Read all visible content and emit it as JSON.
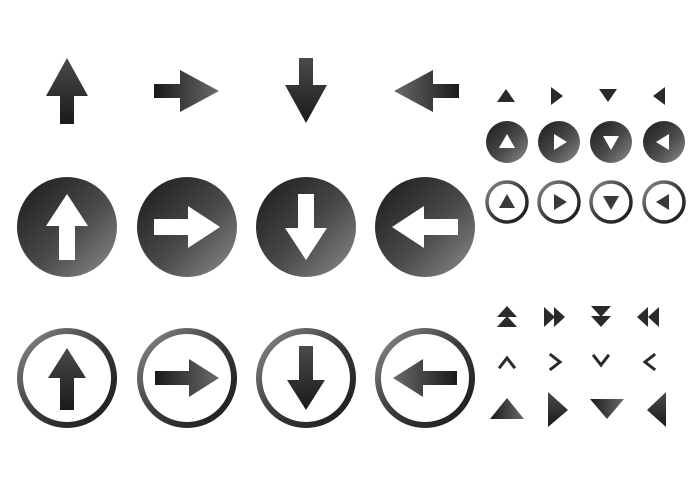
{
  "colors": {
    "background": "#ffffff",
    "dark": "#1a1a1a",
    "mid": "#4a4a4a",
    "light": "#8c8c8c",
    "inner": "#ffffff"
  },
  "directions": [
    "up",
    "right",
    "down",
    "left"
  ],
  "sets": {
    "plain_arrows": {
      "icon": "arrow-icon",
      "style": "plain"
    },
    "filled_circle_arrows": {
      "icon": "arrow-icon",
      "style": "filled-circle"
    },
    "outline_circle_arrows": {
      "icon": "arrow-icon",
      "style": "outline-circle"
    },
    "small_triangles": {
      "icon": "triangle-icon",
      "style": "plain"
    },
    "small_filled_circle_triangles": {
      "icon": "triangle-icon",
      "style": "filled-circle"
    },
    "small_outline_circle_triangles": {
      "icon": "triangle-icon",
      "style": "outline-circle"
    },
    "double_chevrons": {
      "icon": "double-triangle-icon",
      "style": "plain"
    },
    "chevrons": {
      "icon": "chevron-icon",
      "style": "plain"
    },
    "wedges": {
      "icon": "wedge-triangle-icon",
      "style": "plain"
    }
  }
}
